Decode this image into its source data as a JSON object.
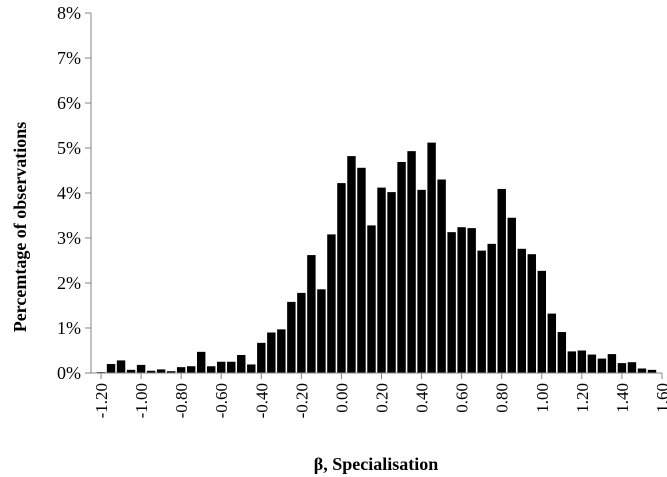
{
  "chart_data": {
    "type": "bar",
    "title": "",
    "xlabel": "β, Specialisation",
    "ylabel": "Percemtage of observations",
    "ylim": [
      0,
      8
    ],
    "xlim": [
      -1.25,
      1.6
    ],
    "grid": false,
    "legend": "none",
    "bar_color": "#000000",
    "y_ticks": [
      0,
      1,
      2,
      3,
      4,
      5,
      6,
      7,
      8
    ],
    "y_tick_labels": [
      "0%",
      "1%",
      "2%",
      "3%",
      "4%",
      "5%",
      "6%",
      "7%",
      "8%"
    ],
    "x_ticks": [
      -1.2,
      -1.0,
      -0.8,
      -0.6,
      -0.4,
      -0.2,
      0.0,
      0.2,
      0.4,
      0.6,
      0.8,
      1.0,
      1.2,
      1.4,
      1.6
    ],
    "x_tick_labels": [
      "-1.20",
      "-1.00",
      "-0.80",
      "-0.60",
      "-0.40",
      "-0.20",
      "0.00",
      "0.20",
      "0.40",
      "0.60",
      "0.80",
      "1.00",
      "1.20",
      "1.40",
      "1.60"
    ],
    "bin_width": 0.05,
    "x": [
      -1.2,
      -1.15,
      -1.1,
      -1.05,
      -1.0,
      -0.95,
      -0.9,
      -0.85,
      -0.8,
      -0.75,
      -0.7,
      -0.65,
      -0.6,
      -0.55,
      -0.5,
      -0.45,
      -0.4,
      -0.35,
      -0.3,
      -0.25,
      -0.2,
      -0.15,
      -0.1,
      -0.05,
      0.0,
      0.05,
      0.1,
      0.15,
      0.2,
      0.25,
      0.3,
      0.35,
      0.4,
      0.45,
      0.5,
      0.55,
      0.6,
      0.65,
      0.7,
      0.75,
      0.8,
      0.85,
      0.9,
      0.95,
      1.0,
      1.05,
      1.1,
      1.15,
      1.2,
      1.25,
      1.3,
      1.35,
      1.4,
      1.45,
      1.5,
      1.55
    ],
    "values": [
      0.02,
      0.2,
      0.28,
      0.07,
      0.18,
      0.05,
      0.08,
      0.04,
      0.13,
      0.15,
      0.47,
      0.15,
      0.25,
      0.25,
      0.4,
      0.19,
      0.67,
      0.9,
      0.97,
      1.58,
      1.78,
      2.62,
      1.86,
      3.08,
      4.22,
      4.82,
      4.56,
      3.28,
      4.12,
      4.02,
      4.69,
      4.93,
      4.07,
      5.12,
      4.3,
      3.13,
      3.24,
      3.22,
      2.72,
      2.87,
      4.09,
      3.45,
      2.76,
      2.64,
      2.27,
      1.32,
      0.91,
      0.48,
      0.5,
      0.41,
      0.32,
      0.42,
      0.22,
      0.24,
      0.1,
      0.07
    ]
  }
}
